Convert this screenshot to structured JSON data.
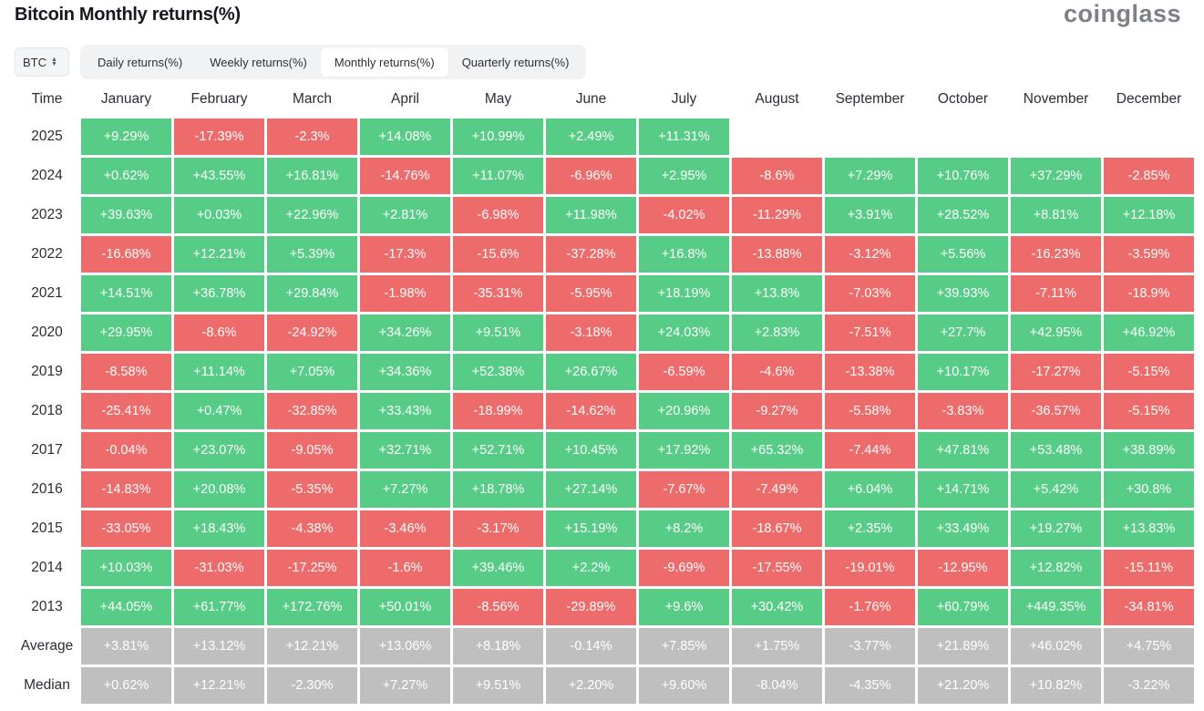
{
  "header": {
    "title": "Bitcoin Monthly returns(%)",
    "logo": "coinglass"
  },
  "asset_select": {
    "value": "BTC",
    "icon": "chevron-up-down-icon"
  },
  "tabs": [
    {
      "label": "Daily returns(%)",
      "active": false
    },
    {
      "label": "Weekly returns(%)",
      "active": false
    },
    {
      "label": "Monthly returns(%)",
      "active": true
    },
    {
      "label": "Quarterly returns(%)",
      "active": false
    }
  ],
  "colors": {
    "positive": "#57cc87",
    "negative": "#ee6b6b",
    "summary": "#bfbfbf"
  },
  "table": {
    "time_header": "Time",
    "months": [
      "January",
      "February",
      "March",
      "April",
      "May",
      "June",
      "July",
      "August",
      "September",
      "October",
      "November",
      "December"
    ],
    "rows": [
      {
        "year": "2025",
        "values": [
          "+9.29%",
          "-17.39%",
          "-2.3%",
          "+14.08%",
          "+10.99%",
          "+2.49%",
          "+11.31%",
          "",
          "",
          "",
          "",
          ""
        ]
      },
      {
        "year": "2024",
        "values": [
          "+0.62%",
          "+43.55%",
          "+16.81%",
          "-14.76%",
          "+11.07%",
          "-6.96%",
          "+2.95%",
          "-8.6%",
          "+7.29%",
          "+10.76%",
          "+37.29%",
          "-2.85%"
        ]
      },
      {
        "year": "2023",
        "values": [
          "+39.63%",
          "+0.03%",
          "+22.96%",
          "+2.81%",
          "-6.98%",
          "+11.98%",
          "-4.02%",
          "-11.29%",
          "+3.91%",
          "+28.52%",
          "+8.81%",
          "+12.18%"
        ]
      },
      {
        "year": "2022",
        "values": [
          "-16.68%",
          "+12.21%",
          "+5.39%",
          "-17.3%",
          "-15.6%",
          "-37.28%",
          "+16.8%",
          "-13.88%",
          "-3.12%",
          "+5.56%",
          "-16.23%",
          "-3.59%"
        ]
      },
      {
        "year": "2021",
        "values": [
          "+14.51%",
          "+36.78%",
          "+29.84%",
          "-1.98%",
          "-35.31%",
          "-5.95%",
          "+18.19%",
          "+13.8%",
          "-7.03%",
          "+39.93%",
          "-7.11%",
          "-18.9%"
        ]
      },
      {
        "year": "2020",
        "values": [
          "+29.95%",
          "-8.6%",
          "-24.92%",
          "+34.26%",
          "+9.51%",
          "-3.18%",
          "+24.03%",
          "+2.83%",
          "-7.51%",
          "+27.7%",
          "+42.95%",
          "+46.92%"
        ]
      },
      {
        "year": "2019",
        "values": [
          "-8.58%",
          "+11.14%",
          "+7.05%",
          "+34.36%",
          "+52.38%",
          "+26.67%",
          "-6.59%",
          "-4.6%",
          "-13.38%",
          "+10.17%",
          "-17.27%",
          "-5.15%"
        ]
      },
      {
        "year": "2018",
        "values": [
          "-25.41%",
          "+0.47%",
          "-32.85%",
          "+33.43%",
          "-18.99%",
          "-14.62%",
          "+20.96%",
          "-9.27%",
          "-5.58%",
          "-3.83%",
          "-36.57%",
          "-5.15%"
        ]
      },
      {
        "year": "2017",
        "values": [
          "-0.04%",
          "+23.07%",
          "-9.05%",
          "+32.71%",
          "+52.71%",
          "+10.45%",
          "+17.92%",
          "+65.32%",
          "-7.44%",
          "+47.81%",
          "+53.48%",
          "+38.89%"
        ]
      },
      {
        "year": "2016",
        "values": [
          "-14.83%",
          "+20.08%",
          "-5.35%",
          "+7.27%",
          "+18.78%",
          "+27.14%",
          "-7.67%",
          "-7.49%",
          "+6.04%",
          "+14.71%",
          "+5.42%",
          "+30.8%"
        ]
      },
      {
        "year": "2015",
        "values": [
          "-33.05%",
          "+18.43%",
          "-4.38%",
          "-3.46%",
          "-3.17%",
          "+15.19%",
          "+8.2%",
          "-18.67%",
          "+2.35%",
          "+33.49%",
          "+19.27%",
          "+13.83%"
        ]
      },
      {
        "year": "2014",
        "values": [
          "+10.03%",
          "-31.03%",
          "-17.25%",
          "-1.6%",
          "+39.46%",
          "+2.2%",
          "-9.69%",
          "-17.55%",
          "-19.01%",
          "-12.95%",
          "+12.82%",
          "-15.11%"
        ]
      },
      {
        "year": "2013",
        "values": [
          "+44.05%",
          "+61.77%",
          "+172.76%",
          "+50.01%",
          "-8.56%",
          "-29.89%",
          "+9.6%",
          "+30.42%",
          "-1.76%",
          "+60.79%",
          "+449.35%",
          "-34.81%"
        ]
      }
    ],
    "summary": [
      {
        "label": "Average",
        "values": [
          "+3.81%",
          "+13.12%",
          "+12.21%",
          "+13.06%",
          "+8.18%",
          "-0.14%",
          "+7.85%",
          "+1.75%",
          "-3.77%",
          "+21.89%",
          "+46.02%",
          "+4.75%"
        ]
      },
      {
        "label": "Median",
        "values": [
          "+0.62%",
          "+12.21%",
          "-2.30%",
          "+7.27%",
          "+9.51%",
          "+2.20%",
          "+9.60%",
          "-8.04%",
          "-4.35%",
          "+21.20%",
          "+10.82%",
          "-3.22%"
        ]
      }
    ]
  }
}
